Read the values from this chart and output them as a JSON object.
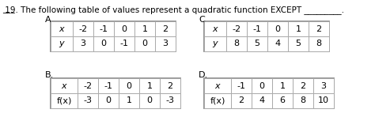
{
  "title_prefix": "___",
  "title_text": " 19. The following table of values represent a quadratic function EXCEPT _________.",
  "tables": {
    "A": {
      "label": "A.",
      "row1_header": "x",
      "row1_values": [
        "-2",
        "-1",
        "0",
        "1",
        "2"
      ],
      "row2_header": "y",
      "row2_values": [
        "3",
        "0",
        "-1",
        "0",
        "3"
      ]
    },
    "B": {
      "label": "B.",
      "row1_header": "x",
      "row1_values": [
        "-2",
        "-1",
        "0",
        "1",
        "2"
      ],
      "row2_header": "f(x)",
      "row2_values": [
        "-3",
        "0",
        "1",
        "0",
        "-3"
      ]
    },
    "C": {
      "label": "C.",
      "row1_header": "x",
      "row1_values": [
        "-2",
        "-1",
        "0",
        "1",
        "2"
      ],
      "row2_header": "y",
      "row2_values": [
        "8",
        "5",
        "4",
        "5",
        "8"
      ]
    },
    "D": {
      "label": "D.",
      "row1_header": "x",
      "row1_values": [
        "-1",
        "0",
        "1",
        "2",
        "3"
      ],
      "row2_header": "f(x)",
      "row2_values": [
        "2",
        "4",
        "6",
        "8",
        "10"
      ]
    }
  },
  "bg_color": "#ffffff",
  "outer_border_color": "#888888",
  "inner_line_color": "#aaaaaa",
  "text_color": "#000000",
  "font_size_title": 7.5,
  "font_size_table": 8.0,
  "font_size_label": 8.0
}
